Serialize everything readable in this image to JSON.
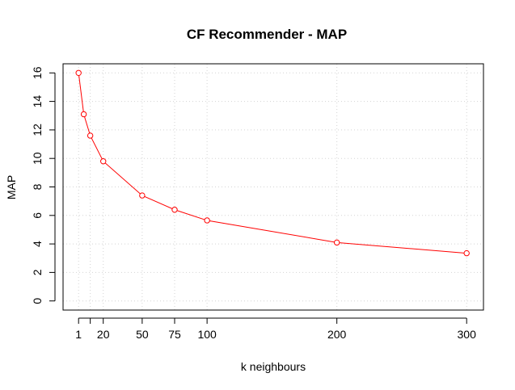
{
  "chart_data": {
    "type": "line",
    "title": "CF Recommender - MAP",
    "xlabel": "k neighbours",
    "ylabel": "MAP",
    "x_ticks": [
      1,
      10,
      20,
      50,
      75,
      100,
      200,
      300
    ],
    "x_tick_labels": [
      "1",
      "",
      "20",
      "50",
      "75",
      "100",
      "200",
      "300"
    ],
    "y_ticks": [
      0,
      2,
      4,
      6,
      8,
      10,
      12,
      14,
      16
    ],
    "xlim": [
      -10.96,
      312.96
    ],
    "ylim": [
      -0.64,
      16.64
    ],
    "grid": true,
    "series": [
      {
        "color": "#ff0000",
        "x": [
          1,
          5,
          10,
          20,
          50,
          75,
          100,
          200,
          300
        ],
        "y": [
          16.0,
          13.1,
          11.6,
          9.8,
          7.4,
          6.4,
          5.65,
          4.1,
          3.35
        ]
      }
    ]
  }
}
